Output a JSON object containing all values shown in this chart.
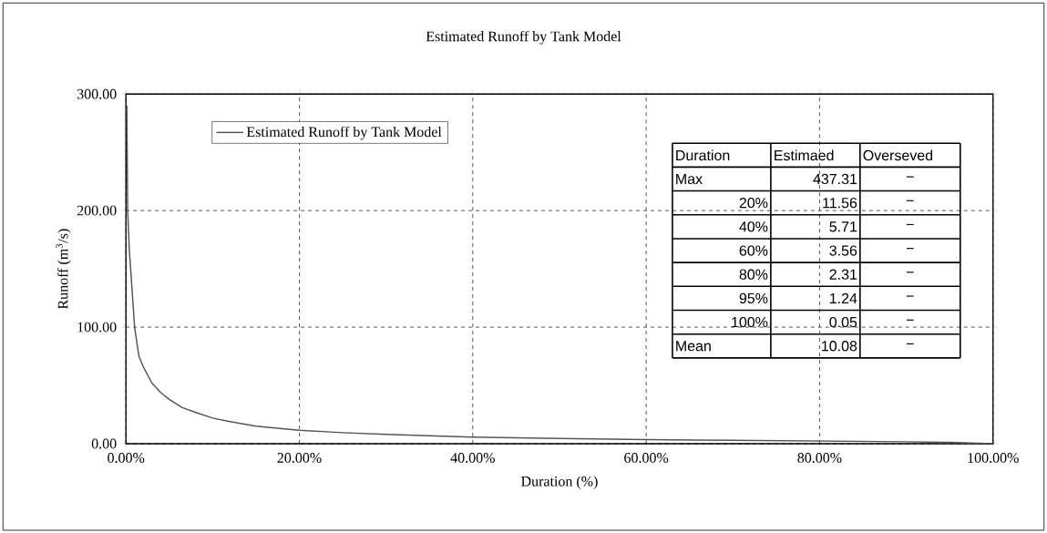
{
  "chart_data": {
    "type": "line",
    "title": "Estimated Runoff by Tank Model",
    "xlabel": "Duration (%)",
    "ylabel": "Runoff (m$^{3}$/s)",
    "x": [
      0.1,
      0.2,
      0.4,
      0.6,
      1.0,
      1.5,
      2,
      3,
      4,
      5,
      6.5,
      8,
      10,
      12,
      15,
      20,
      25,
      30,
      40,
      50,
      60,
      70,
      80,
      90,
      95,
      100
    ],
    "series": [
      {
        "name": "Estimated Runoff by Tank Model",
        "color": "#555555",
        "values": [
          290,
          200,
          165,
          144,
          100,
          75,
          66,
          52,
          44,
          38,
          31,
          27,
          22,
          19,
          15,
          11.6,
          9.5,
          8,
          5.7,
          4.5,
          3.6,
          2.9,
          2.3,
          1.7,
          1.2,
          0.05
        ]
      }
    ],
    "xlim": [
      0,
      100
    ],
    "ylim": [
      0,
      300
    ],
    "xticks": [
      {
        "value": 0,
        "label": "0.00%"
      },
      {
        "value": 20,
        "label": "20.00%"
      },
      {
        "value": 40,
        "label": "40.00%"
      },
      {
        "value": 60,
        "label": "60.00%"
      },
      {
        "value": 80,
        "label": "80.00%"
      },
      {
        "value": 100,
        "label": "100.00%"
      }
    ],
    "yticks": [
      {
        "value": 0,
        "label": "0.00"
      },
      {
        "value": 100,
        "label": "100.00"
      },
      {
        "value": 200,
        "label": "200.00"
      },
      {
        "value": 300,
        "label": "300.00"
      }
    ],
    "grid": true,
    "legend": "top left",
    "marker": "none",
    "line_style": "solid",
    "annotations": [
      "Duration",
      "Estimaed",
      "Overseved",
      "Max",
      "437.31",
      "−",
      "20%",
      "11.56",
      "−",
      "40%",
      "5.71",
      "−",
      "60%",
      "3.56",
      "−",
      "80%",
      "2.31",
      "−",
      "95%",
      "1.24",
      "−",
      "100%",
      "0.05",
      "−",
      "Mean",
      "10.08",
      "−"
    ]
  }
}
